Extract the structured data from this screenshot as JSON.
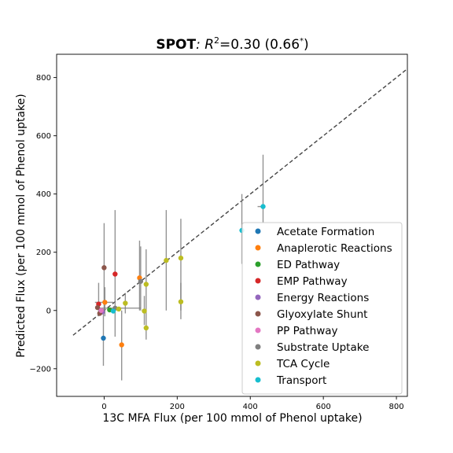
{
  "chart_data": {
    "type": "scatter",
    "title": {
      "bold": "SPOT",
      "rest_prefix": ": R",
      "superscript": "2",
      "rest_suffix": "=0.30 (0.66",
      "star": "*",
      "close": ")"
    },
    "xlabel": "13C MFA Flux (per 100 mmol of Phenol uptake)",
    "ylabel": "Predicted Flux (per 100 mmol of Phenol uptake)",
    "xlim": [
      -130,
      830
    ],
    "ylim": [
      -295,
      880
    ],
    "xticks": [
      0,
      200,
      400,
      600,
      800
    ],
    "yticks": [
      -200,
      0,
      200,
      400,
      600,
      800
    ],
    "xtick_labels": [
      "0",
      "200",
      "400",
      "600",
      "800"
    ],
    "ytick_labels": [
      "−200",
      "0",
      "200",
      "400",
      "600",
      "800"
    ],
    "identity_line": {
      "from": [
        -85,
        -85
      ],
      "to": [
        830,
        830
      ]
    },
    "legend_position": "lower-right",
    "series": [
      {
        "name": "Acetate Formation",
        "color": "#1f77b4",
        "points": [
          {
            "x": -2,
            "y": -95,
            "ylo": -190,
            "yhi": 5
          }
        ]
      },
      {
        "name": "Anaplerotic Reactions",
        "color": "#ff7f0e",
        "points": [
          {
            "x": 48,
            "y": -118,
            "ylo": -240,
            "yhi": 0
          },
          {
            "x": 2,
            "y": 28,
            "ylo": -20,
            "yhi": 80,
            "xlo": -25,
            "xhi": 25
          },
          {
            "x": 97,
            "y": 112,
            "ylo": 0,
            "yhi": 240
          }
        ]
      },
      {
        "name": "ED Pathway",
        "color": "#2ca02c",
        "points": [
          {
            "x": 15,
            "y": 2
          }
        ]
      },
      {
        "name": "EMP Pathway",
        "color": "#d62728",
        "points": [
          {
            "x": -15,
            "y": 22,
            "ylo": -20,
            "yhi": 95
          },
          {
            "x": 30,
            "y": 125
          }
        ]
      },
      {
        "name": "Energy Reactions",
        "color": "#9467bd",
        "points": [
          {
            "x": -5,
            "y": -5
          }
        ]
      },
      {
        "name": "Glyoxylate Shunt",
        "color": "#8c564b",
        "points": [
          {
            "x": 0,
            "y": 147,
            "ylo": 0,
            "yhi": 300
          },
          {
            "x": -12,
            "y": -10
          },
          {
            "x": -18,
            "y": 10
          }
        ]
      },
      {
        "name": "PP Pathway",
        "color": "#e377c2",
        "points": [
          {
            "x": -8,
            "y": 0
          }
        ]
      },
      {
        "name": "Substrate Uptake",
        "color": "#7f7f7f",
        "points": [
          {
            "x": 100,
            "y": 100,
            "ylo": 0,
            "yhi": 220
          },
          {
            "x": 30,
            "y": 8,
            "ylo": -90,
            "yhi": 345,
            "xlo": -15,
            "xhi": 100
          }
        ]
      },
      {
        "name": "TCA Cycle",
        "color": "#bcbd22",
        "points": [
          {
            "x": 58,
            "y": 25,
            "ylo": -10,
            "yhi": 60
          },
          {
            "x": 110,
            "y": -2,
            "ylo": -50,
            "yhi": 50
          },
          {
            "x": 115,
            "y": 90,
            "ylo": 0,
            "yhi": 210
          },
          {
            "x": 115,
            "y": -60,
            "ylo": -100,
            "yhi": 0
          },
          {
            "x": 170,
            "y": 172,
            "ylo": 0,
            "yhi": 345
          },
          {
            "x": 210,
            "y": 180,
            "ylo": 0,
            "yhi": 315
          },
          {
            "x": 210,
            "y": 30,
            "ylo": -30,
            "yhi": 95
          },
          {
            "x": 40,
            "y": 5
          }
        ]
      },
      {
        "name": "Transport",
        "color": "#17becf",
        "points": [
          {
            "x": 377,
            "y": 275,
            "ylo": 160,
            "yhi": 400
          },
          {
            "x": 435,
            "y": 357,
            "ylo": 300,
            "yhi": 535,
            "xlo": 420,
            "xhi": 440
          },
          {
            "x": 25,
            "y": -2
          }
        ]
      }
    ]
  }
}
